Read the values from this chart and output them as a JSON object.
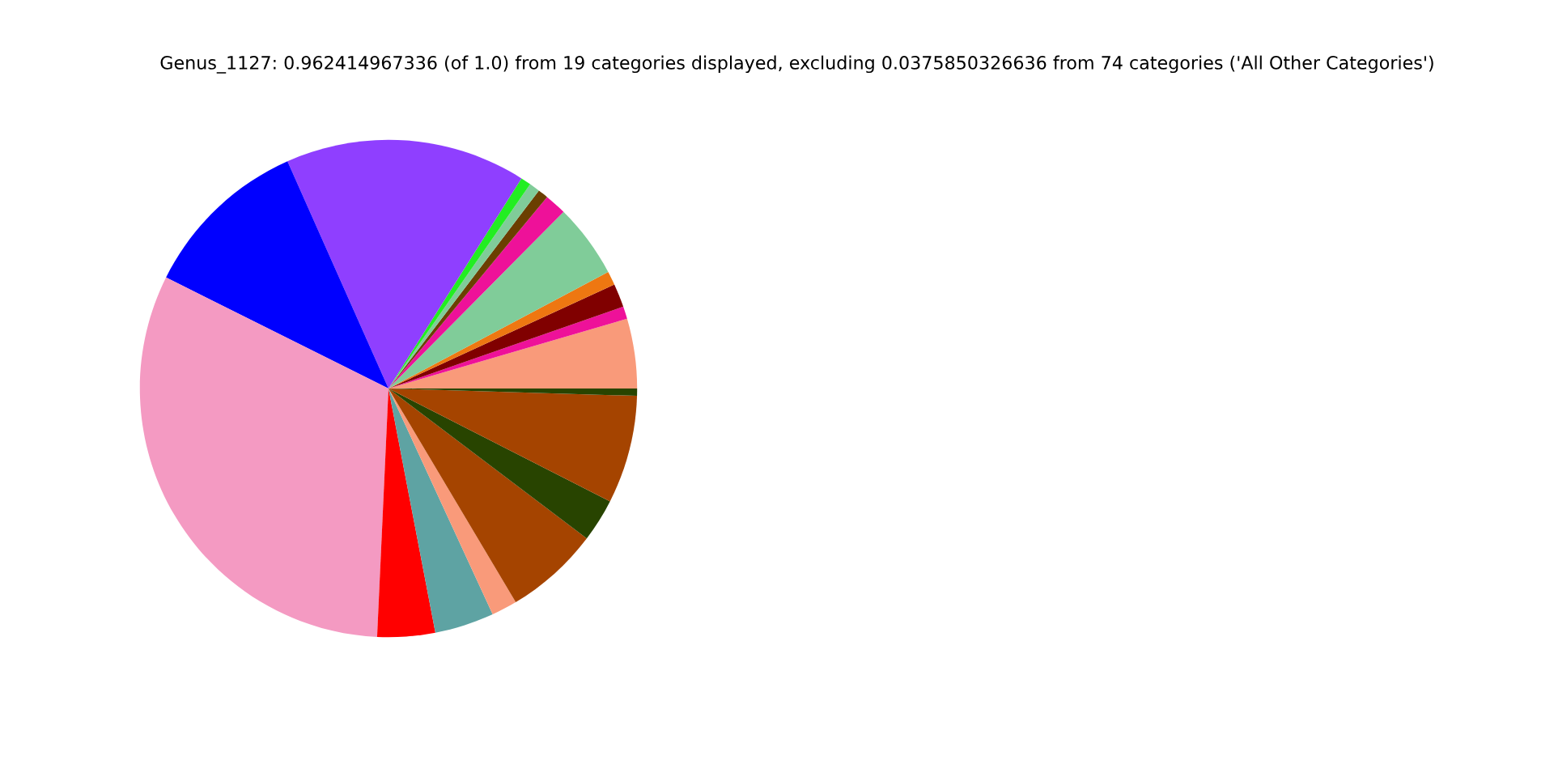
{
  "chart_data": {
    "type": "pie",
    "title": "Genus_1127: 0.962414967336 (of 1.0) from 19 categories displayed, excluding 0.0375850326636 from 74 categories ('All Other Categories')",
    "categories": [
      null,
      null,
      null,
      null,
      null,
      null,
      null,
      null,
      null,
      null,
      null,
      null,
      null,
      null,
      null,
      null,
      null,
      null,
      null
    ],
    "values": [
      4.53,
      0.81,
      1.53,
      0.89,
      4.81,
      1.42,
      0.67,
      0.69,
      0.67,
      15.64,
      10.97,
      31.64,
      3.75,
      3.86,
      1.67,
      6.14,
      2.81,
      7.03,
      0.47
    ],
    "colors": [
      "#f99a7a",
      "#ee1199",
      "#800000",
      "#ee7711",
      "#80cc99",
      "#ee1199",
      "#6b3f00",
      "#80cc99",
      "#22ee22",
      "#8f3fff",
      "#0000ff",
      "#f49ac2",
      "#ff0000",
      "#5ea3a3",
      "#f99a7a",
      "#a54400",
      "#284400",
      "#a54400",
      "#284400"
    ]
  }
}
